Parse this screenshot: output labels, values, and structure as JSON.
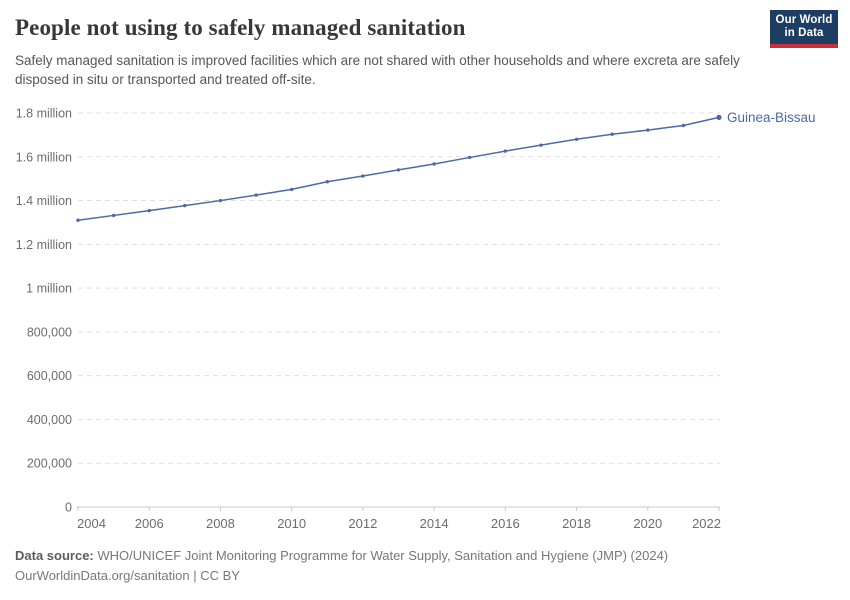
{
  "header": {
    "title": "People not using to safely managed sanitation",
    "subtitle": "Safely managed sanitation is improved facilities which are not shared with other households and where excreta are safely disposed in situ or transported and treated off-site.",
    "logo": {
      "line1": "Our World",
      "line2": "in Data",
      "bg_color": "#1d3d63",
      "bar_color": "#cc2f38"
    }
  },
  "chart_data": {
    "type": "line",
    "title": "People not using to safely managed sanitation",
    "entity": "Guinea-Bissau",
    "x": [
      2004,
      2005,
      2006,
      2007,
      2008,
      2009,
      2010,
      2011,
      2012,
      2013,
      2014,
      2015,
      2016,
      2017,
      2018,
      2019,
      2020,
      2021,
      2022
    ],
    "series": [
      {
        "name": "Guinea-Bissau",
        "values": [
          1310000,
          1332000,
          1354000,
          1377000,
          1400000,
          1425000,
          1451000,
          1486000,
          1512000,
          1540000,
          1567000,
          1597000,
          1626000,
          1653000,
          1680000,
          1703000,
          1722000,
          1743000,
          1780000
        ]
      }
    ],
    "xlim": [
      2004,
      2022
    ],
    "ylim": [
      0,
      1800000
    ],
    "x_ticks": [
      2004,
      2006,
      2008,
      2010,
      2012,
      2014,
      2016,
      2018,
      2020,
      2022
    ],
    "y_ticks": [
      {
        "value": 0,
        "label": "0"
      },
      {
        "value": 200000,
        "label": "200,000"
      },
      {
        "value": 400000,
        "label": "400,000"
      },
      {
        "value": 600000,
        "label": "600,000"
      },
      {
        "value": 800000,
        "label": "800,000"
      },
      {
        "value": 1000000,
        "label": "1 million"
      },
      {
        "value": 1200000,
        "label": "1.2 million"
      },
      {
        "value": 1400000,
        "label": "1.4 million"
      },
      {
        "value": 1600000,
        "label": "1.6 million"
      },
      {
        "value": 1800000,
        "label": "1.8 million"
      }
    ],
    "grid": "horizontal-dashed",
    "legend_position": "end-of-line",
    "line_color": "#4a6aa8",
    "grid_color": "#dfdfdf",
    "axis_color": "#c8c8c8",
    "tick_text_color": "#6d6d6d"
  },
  "footer": {
    "source_label": "Data source:",
    "source_text": "WHO/UNICEF Joint Monitoring Programme for Water Supply, Sanitation and Hygiene (JMP) (2024)",
    "license_text": "OurWorldinData.org/sanitation | CC BY"
  }
}
